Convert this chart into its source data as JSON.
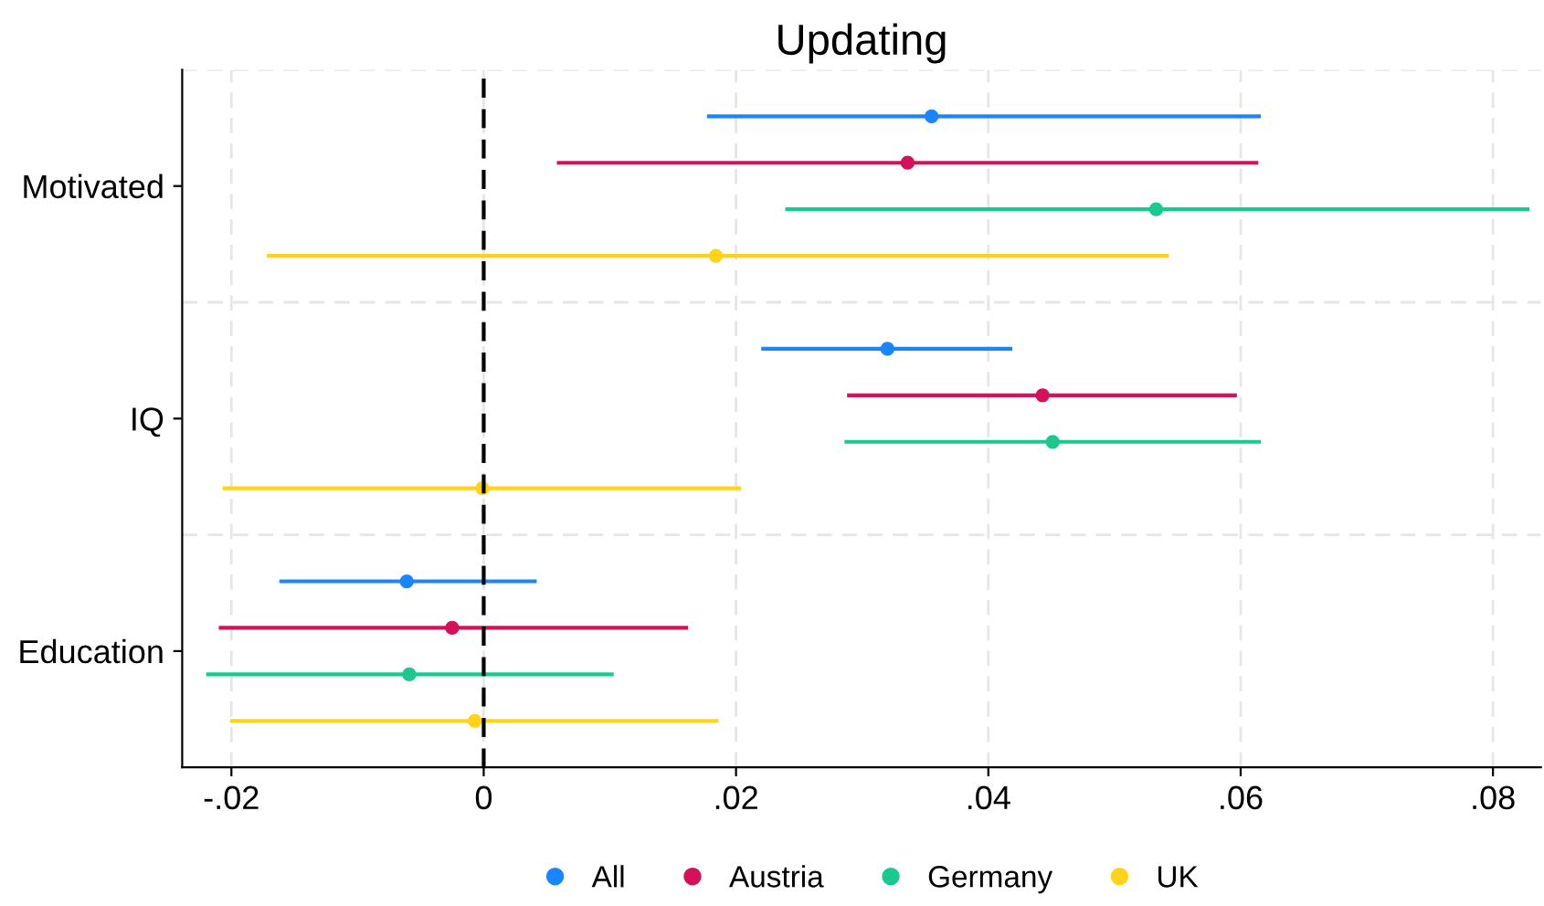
{
  "chart_data": {
    "type": "scatter",
    "orientation": "horizontal",
    "title": "Updating",
    "categories": [
      "Motivated",
      "IQ",
      "Education"
    ],
    "series": [
      {
        "name": "All",
        "color": "#1a85ff",
        "values": [
          0.0355,
          0.032,
          -0.0061
        ],
        "errors": [
          [
            0.0177,
            0.0616
          ],
          [
            0.022,
            0.0419
          ],
          [
            -0.0162,
            0.0042
          ]
        ]
      },
      {
        "name": "Austria",
        "color": "#d41159",
        "values": [
          0.0336,
          0.0443,
          -0.0025
        ],
        "errors": [
          [
            0.0058,
            0.0614
          ],
          [
            0.0288,
            0.0597
          ],
          [
            -0.021,
            0.0162
          ]
        ]
      },
      {
        "name": "Germany",
        "color": "#1bc98e",
        "values": [
          0.0533,
          0.0451,
          -0.0059
        ],
        "errors": [
          [
            0.0239,
            0.0829
          ],
          [
            0.0286,
            0.0616
          ],
          [
            -0.022,
            0.0103
          ]
        ]
      },
      {
        "name": "UK",
        "color": "#ffd31a",
        "values": [
          0.0184,
          -0.0001,
          -0.0007
        ],
        "errors": [
          [
            -0.0172,
            0.0543
          ],
          [
            -0.0207,
            0.0204
          ],
          [
            -0.0201,
            0.0186
          ]
        ]
      }
    ],
    "xlim": [
      -0.0239,
      0.0838
    ],
    "xticks": [
      {
        "value": -0.02,
        "label": "-.02"
      },
      0,
      {
        "value": 0.02,
        "label": ".02"
      },
      {
        "value": 0.04,
        "label": ".04"
      },
      {
        "value": 0.06,
        "label": ".06"
      },
      {
        "value": 0.08,
        "label": ".08"
      }
    ],
    "ref_lines": [
      {
        "axis": "x",
        "value": 0,
        "label": null,
        "color": "#000000",
        "line_style": "dashed"
      }
    ],
    "grid": true,
    "legend": "bottom",
    "marker": "circle"
  }
}
